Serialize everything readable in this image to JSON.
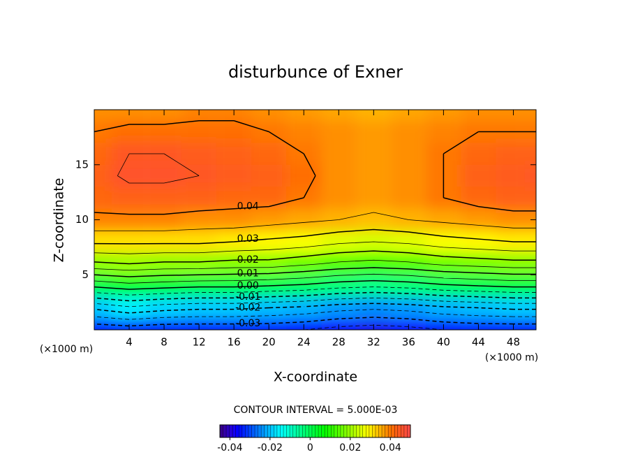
{
  "chart_data": {
    "type": "contour",
    "title": "disturbunce of Exner",
    "xlabel": "X-coordinate",
    "ylabel": "Z-coordinate",
    "xunit": "(×1000 m)",
    "contour_interval_label": "CONTOUR INTERVAL = 5.000E-03",
    "xlim": [
      0,
      50.6
    ],
    "ylim": [
      0,
      20
    ],
    "xticks": [
      4,
      8,
      12,
      16,
      20,
      24,
      28,
      32,
      36,
      40,
      44,
      48
    ],
    "yticks": [
      5,
      10,
      15
    ],
    "x": [
      0,
      4,
      8,
      12,
      16,
      20,
      24,
      28,
      32,
      36,
      40,
      44,
      48,
      50.6
    ],
    "y": [
      0,
      2,
      4,
      6,
      8,
      10,
      12,
      14,
      16,
      18,
      20
    ],
    "z": [
      [
        -0.034,
        -0.033,
        -0.034,
        -0.034,
        -0.034,
        -0.034,
        -0.035,
        -0.037,
        -0.038,
        -0.037,
        -0.035,
        -0.034,
        -0.034,
        -0.034
      ],
      [
        -0.019,
        -0.016,
        -0.018,
        -0.019,
        -0.019,
        -0.02,
        -0.021,
        -0.023,
        -0.024,
        -0.023,
        -0.021,
        -0.02,
        -0.019,
        -0.019
      ],
      [
        0.001,
        0.003,
        0.002,
        0.001,
        0.001,
        0.0,
        -0.001,
        -0.003,
        -0.004,
        -0.003,
        -0.001,
        0.0,
        0.001,
        0.001
      ],
      [
        0.019,
        0.02,
        0.019,
        0.019,
        0.018,
        0.018,
        0.016,
        0.014,
        0.013,
        0.014,
        0.016,
        0.017,
        0.018,
        0.018
      ],
      [
        0.031,
        0.031,
        0.031,
        0.031,
        0.03,
        0.029,
        0.028,
        0.026,
        0.025,
        0.026,
        0.028,
        0.029,
        0.03,
        0.03
      ],
      [
        0.039,
        0.039,
        0.039,
        0.038,
        0.038,
        0.037,
        0.036,
        0.035,
        0.034,
        0.035,
        0.036,
        0.037,
        0.038,
        0.038
      ],
      [
        0.042,
        0.043,
        0.043,
        0.043,
        0.042,
        0.042,
        0.04,
        0.038,
        0.037,
        0.038,
        0.04,
        0.042,
        0.043,
        0.043
      ],
      [
        0.043,
        0.046,
        0.046,
        0.045,
        0.044,
        0.043,
        0.041,
        0.038,
        0.037,
        0.038,
        0.04,
        0.043,
        0.044,
        0.045
      ],
      [
        0.042,
        0.045,
        0.045,
        0.044,
        0.043,
        0.042,
        0.04,
        0.038,
        0.037,
        0.038,
        0.04,
        0.042,
        0.043,
        0.043
      ],
      [
        0.04,
        0.041,
        0.041,
        0.041,
        0.041,
        0.04,
        0.039,
        0.038,
        0.037,
        0.038,
        0.039,
        0.04,
        0.04,
        0.04
      ],
      [
        0.038,
        0.038,
        0.038,
        0.039,
        0.039,
        0.038,
        0.037,
        0.036,
        0.035,
        0.036,
        0.037,
        0.038,
        0.038,
        0.038
      ]
    ],
    "levels": [
      -0.035,
      -0.03,
      -0.025,
      -0.02,
      -0.015,
      -0.01,
      -0.005,
      0,
      0.005,
      0.01,
      0.015,
      0.02,
      0.025,
      0.03,
      0.035,
      0.04,
      0.045
    ],
    "level_labels": [
      {
        "value": -0.03,
        "label": "-0.03"
      },
      {
        "value": -0.02,
        "label": "-0.02"
      },
      {
        "value": -0.01,
        "label": "-0.01"
      },
      {
        "value": 0,
        "label": "0.00"
      },
      {
        "value": 0.01,
        "label": "0.01"
      },
      {
        "value": 0.02,
        "label": "0.02"
      },
      {
        "value": 0.03,
        "label": "0.03"
      },
      {
        "value": 0.04,
        "label": "0.04"
      }
    ],
    "clim": [
      -0.045,
      0.05
    ],
    "cticks": [
      -0.04,
      -0.02,
      0,
      0.02,
      0.04
    ]
  }
}
